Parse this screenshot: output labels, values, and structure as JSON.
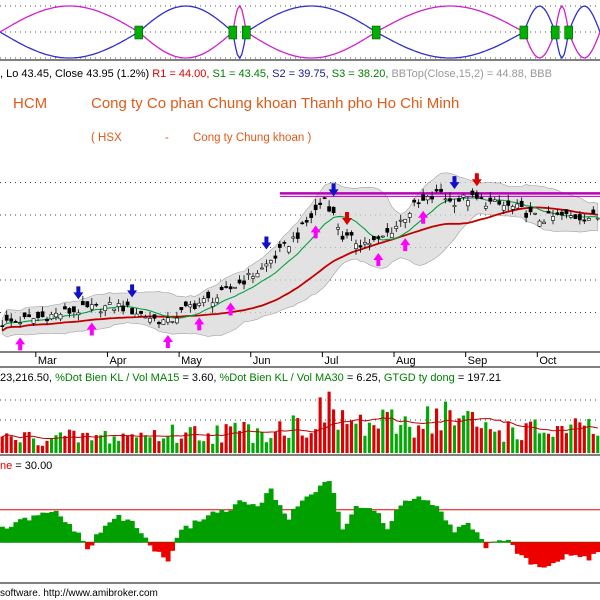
{
  "window": {
    "footer": "software. http://www.amibroker.com"
  },
  "colors": {
    "up_candle": "#007a00",
    "down_candle": "#cc0000",
    "ma_short": "#00a040",
    "ma_long": "#c00000",
    "band_fill": "#d8d8d8",
    "buy_arrow": "#ff00ff",
    "sell_arrow_blue": "#1010c8",
    "sell_arrow_red": "#dd0000",
    "resistance_line": "#bb00bb",
    "title_text": "#e05a1a",
    "stats_text": "#1a1a8c",
    "volume_up": "#00aa00",
    "volume_down": "#dd0000",
    "osc_positive": "#00a000",
    "osc_negative": "#ee0000",
    "ribbon_blue": "#3030d0",
    "ribbon_magenta": "#d020d0",
    "ribbon_marker": "#00b000"
  },
  "header": {
    "stats_parts": [
      {
        "text": ", Lo 43.45, Close 43.95 (1.2%) ",
        "color": "#000000"
      },
      {
        "text": "R1 = 44.00, ",
        "color": "#dd0000"
      },
      {
        "text": "S1 = 43.45, ",
        "color": "#008000"
      },
      {
        "text": "S2 = 39.75, ",
        "color": "#1a1a8c"
      },
      {
        "text": "S3 = 38.20, ",
        "color": "#008000"
      },
      {
        "text": "BBTop(Close,15,2) = 44.88, ",
        "color": "#999999"
      },
      {
        "text": "BBB",
        "color": "#999999"
      }
    ],
    "ticker": "HCM",
    "company": "Cong ty Co phan Chung khoan Thanh pho Ho Chi Minh",
    "exchange": "( HSX",
    "dash": "-",
    "industry": "Cong ty Chung khoan )"
  },
  "volume_header": {
    "parts": [
      {
        "text": "23,216.50, ",
        "color": "#000000"
      },
      {
        "text": "%Dot Bien KL / Vol MA15 ",
        "color": "#008000"
      },
      {
        "text": "= 3.60, ",
        "color": "#000000"
      },
      {
        "text": "%Dot Bien KL / Vol MA30 ",
        "color": "#008000"
      },
      {
        "text": "= 6.25, ",
        "color": "#000000"
      },
      {
        "text": "GTGD ty dong ",
        "color": "#008000"
      },
      {
        "text": "= 197.21",
        "color": "#000000"
      }
    ]
  },
  "oscillator_header": {
    "parts": [
      {
        "text": "ne ",
        "color": "#dd0000"
      },
      {
        "text": "= 30.00",
        "color": "#000000"
      }
    ]
  },
  "chart_data": {
    "type": "candlestick",
    "months": [
      "Mar",
      "Apr",
      "May",
      "Jun",
      "Jul",
      "Aug",
      "Sep",
      "Oct"
    ],
    "month_start_index": [
      8,
      24,
      40,
      56,
      72,
      88,
      104,
      120
    ],
    "num_bars": 134,
    "price_ylim": [
      30,
      48
    ],
    "price_gridlines": [
      33,
      36,
      39,
      42,
      45
    ],
    "price_waypoints": [
      [
        0,
        32.0
      ],
      [
        8,
        32.5
      ],
      [
        14,
        33.0
      ],
      [
        20,
        33.4
      ],
      [
        26,
        33.6
      ],
      [
        30,
        33.0
      ],
      [
        34,
        32.4
      ],
      [
        37,
        32.1
      ],
      [
        42,
        33.6
      ],
      [
        48,
        34.4
      ],
      [
        54,
        36.0
      ],
      [
        58,
        37.0
      ],
      [
        62,
        38.6
      ],
      [
        66,
        40.2
      ],
      [
        70,
        42.4
      ],
      [
        72,
        43.6
      ],
      [
        74,
        42.0
      ],
      [
        76,
        40.0
      ],
      [
        80,
        39.4
      ],
      [
        84,
        39.6
      ],
      [
        88,
        41.0
      ],
      [
        92,
        42.8
      ],
      [
        96,
        43.6
      ],
      [
        98,
        44.2
      ],
      [
        100,
        43.2
      ],
      [
        104,
        43.6
      ],
      [
        110,
        43.0
      ],
      [
        115,
        42.6
      ],
      [
        120,
        41.6
      ],
      [
        125,
        41.9
      ],
      [
        130,
        41.8
      ],
      [
        133,
        41.8
      ]
    ],
    "volume_waypoints": [
      [
        0,
        30
      ],
      [
        20,
        32
      ],
      [
        40,
        40
      ],
      [
        55,
        45
      ],
      [
        68,
        60
      ],
      [
        72,
        85
      ],
      [
        80,
        55
      ],
      [
        90,
        60
      ],
      [
        98,
        80
      ],
      [
        108,
        50
      ],
      [
        120,
        45
      ],
      [
        133,
        48
      ]
    ],
    "volume_ylim": [
      0,
      140
    ],
    "oscillator_waypoints": [
      [
        0,
        12
      ],
      [
        6,
        22
      ],
      [
        12,
        28
      ],
      [
        16,
        12
      ],
      [
        19,
        -6
      ],
      [
        22,
        10
      ],
      [
        26,
        25
      ],
      [
        30,
        14
      ],
      [
        34,
        -8
      ],
      [
        37,
        -16
      ],
      [
        40,
        10
      ],
      [
        46,
        26
      ],
      [
        50,
        30
      ],
      [
        54,
        38
      ],
      [
        57,
        32
      ],
      [
        60,
        48
      ],
      [
        64,
        22
      ],
      [
        67,
        40
      ],
      [
        70,
        48
      ],
      [
        73,
        58
      ],
      [
        76,
        12
      ],
      [
        79,
        34
      ],
      [
        83,
        30
      ],
      [
        86,
        12
      ],
      [
        89,
        36
      ],
      [
        93,
        42
      ],
      [
        97,
        32
      ],
      [
        101,
        8
      ],
      [
        104,
        20
      ],
      [
        108,
        -6
      ],
      [
        112,
        4
      ],
      [
        115,
        -10
      ],
      [
        118,
        -18
      ],
      [
        121,
        -22
      ],
      [
        125,
        -14
      ],
      [
        128,
        -10
      ],
      [
        131,
        -16
      ],
      [
        133,
        -8
      ]
    ],
    "oscillator_ylim": [
      -35,
      65
    ],
    "oscillator_level": 30,
    "ribbon_crossings": [
      31,
      52,
      55,
      84,
      117,
      124,
      127
    ],
    "buy_signal_bars": [
      4,
      20,
      37,
      44,
      51,
      70,
      84,
      90,
      94
    ],
    "sell_signal_bars_blue": [
      17,
      29,
      59,
      74,
      101
    ],
    "sell_signal_bars_red": [
      77,
      106
    ],
    "resistance_level": 44.0,
    "resistance_from_bar": 62,
    "legend": "none"
  }
}
